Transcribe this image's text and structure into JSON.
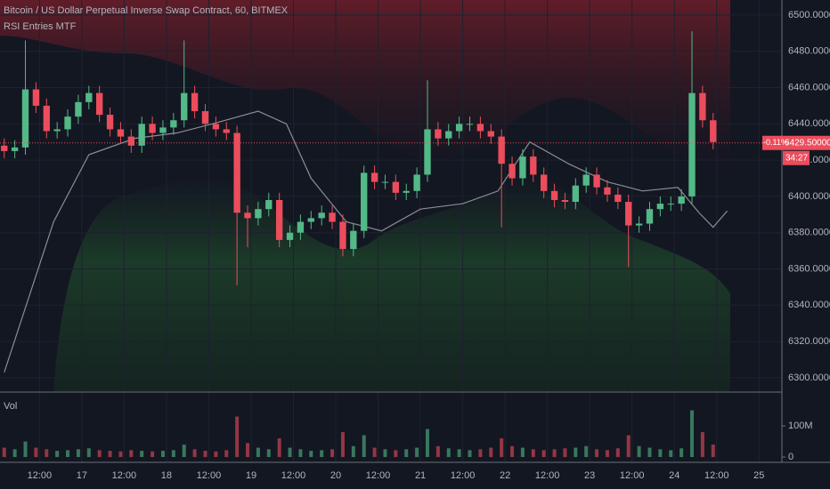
{
  "header": {
    "title": "Bitcoin / US Dollar Perpetual Inverse Swap Contract, 60, BITMEX",
    "indicator": "RSI Entries MTF"
  },
  "chart_data": {
    "type": "candlestick",
    "x": [
      2,
      5,
      8,
      11,
      14,
      17,
      20,
      23,
      26,
      29,
      32,
      35,
      38,
      41,
      44,
      47,
      50,
      53,
      56,
      59,
      62,
      65,
      68,
      71,
      74,
      77,
      80,
      83,
      86,
      89,
      92,
      95,
      98,
      101,
      104,
      107,
      110,
      113,
      116,
      119,
      122,
      125,
      128,
      131,
      134,
      137,
      140,
      143,
      146,
      149,
      152,
      155,
      158,
      161,
      164,
      167,
      170,
      173,
      176,
      179,
      182,
      185,
      188,
      191,
      194,
      197,
      200,
      203
    ],
    "open": [
      6428,
      6425,
      6427,
      6459,
      6450,
      6436,
      6437,
      6444,
      6452,
      6457,
      6445,
      6437,
      6433,
      6428,
      6440,
      6435,
      6438,
      6442,
      6457,
      6447,
      6440,
      6437,
      6435,
      6391,
      6388,
      6393,
      6398,
      6376,
      6380,
      6386,
      6388,
      6391,
      6386,
      6371,
      6381,
      6413,
      6408,
      6408,
      6402,
      6403,
      6412,
      6437,
      6432,
      6436,
      6440,
      6440,
      6436,
      6433,
      6418,
      6410,
      6422,
      6412,
      6403,
      6398,
      6397,
      6406,
      6412,
      6405,
      6401,
      6397,
      6384,
      6385,
      6393,
      6396,
      6396,
      6400,
      6457,
      6442
    ],
    "high": [
      6432,
      6431,
      6486,
      6463,
      6454,
      6441,
      6448,
      6456,
      6461,
      6461,
      6449,
      6441,
      6437,
      6444,
      6444,
      6442,
      6446,
      6486,
      6461,
      6451,
      6444,
      6441,
      6439,
      6395,
      6397,
      6402,
      6402,
      6384,
      6390,
      6392,
      6395,
      6395,
      6390,
      6385,
      6417,
      6417,
      6412,
      6412,
      6407,
      6416,
      6464,
      6441,
      6440,
      6444,
      6444,
      6444,
      6440,
      6437,
      6422,
      6426,
      6426,
      6416,
      6407,
      6402,
      6410,
      6416,
      6416,
      6409,
      6405,
      6401,
      6389,
      6397,
      6400,
      6400,
      6404,
      6491,
      6461,
      6446
    ],
    "low": [
      6421,
      6421,
      6423,
      6446,
      6432,
      6432,
      6433,
      6440,
      6448,
      6441,
      6433,
      6429,
      6424,
      6424,
      6431,
      6431,
      6434,
      6438,
      6443,
      6436,
      6433,
      6431,
      6351,
      6372,
      6384,
      6389,
      6372,
      6372,
      6376,
      6382,
      6384,
      6382,
      6367,
      6367,
      6377,
      6404,
      6404,
      6398,
      6398,
      6399,
      6408,
      6428,
      6428,
      6432,
      6436,
      6432,
      6429,
      6383,
      6406,
      6406,
      6408,
      6399,
      6394,
      6393,
      6393,
      6402,
      6401,
      6397,
      6393,
      6361,
      6380,
      6381,
      6389,
      6392,
      6392,
      6396,
      6438,
      6426
    ],
    "close": [
      6425,
      6427,
      6459,
      6450,
      6436,
      6437,
      6444,
      6452,
      6457,
      6445,
      6437,
      6433,
      6428,
      6440,
      6435,
      6438,
      6442,
      6457,
      6447,
      6440,
      6437,
      6435,
      6391,
      6388,
      6393,
      6398,
      6376,
      6380,
      6386,
      6388,
      6391,
      6386,
      6371,
      6381,
      6413,
      6408,
      6408,
      6402,
      6403,
      6412,
      6437,
      6432,
      6436,
      6440,
      6440,
      6436,
      6433,
      6418,
      6410,
      6422,
      6412,
      6403,
      6398,
      6397,
      6406,
      6412,
      6405,
      6401,
      6397,
      6384,
      6385,
      6393,
      6396,
      6396,
      6400,
      6457,
      6442,
      6430
    ],
    "up_color": "#53b987",
    "down_color": "#eb4d5c",
    "xlim": [
      0.8,
      222.5
    ],
    "xticks": [
      {
        "value": 12,
        "label": "12:00"
      },
      {
        "value": 24,
        "label": "17"
      },
      {
        "value": 36,
        "label": "12:00"
      },
      {
        "value": 48,
        "label": "18"
      },
      {
        "value": 60,
        "label": "12:00"
      },
      {
        "value": 72,
        "label": "19"
      },
      {
        "value": 84,
        "label": "12:00"
      },
      {
        "value": 96,
        "label": "20"
      },
      {
        "value": 108,
        "label": "12:00"
      },
      {
        "value": 120,
        "label": "21"
      },
      {
        "value": 132,
        "label": "12:00"
      },
      {
        "value": 144,
        "label": "22"
      },
      {
        "value": 156,
        "label": "12:00"
      },
      {
        "value": 168,
        "label": "23"
      },
      {
        "value": 180,
        "label": "12:00"
      },
      {
        "value": 192,
        "label": "24"
      },
      {
        "value": 204,
        "label": "12:00"
      },
      {
        "value": 216,
        "label": "25"
      }
    ],
    "ylim": [
      6292.6,
      6508.3
    ],
    "yticks": [
      {
        "value": 6300,
        "label": "6300.00000000"
      },
      {
        "value": 6320,
        "label": "6320.00000000"
      },
      {
        "value": 6340,
        "label": "6340.00000000"
      },
      {
        "value": 6360,
        "label": "6360.00000000"
      },
      {
        "value": 6380,
        "label": "6380.00000000"
      },
      {
        "value": 6400,
        "label": "6400.00000000"
      },
      {
        "value": 6420,
        "label": "6420.00000000"
      },
      {
        "value": 6440,
        "label": "6440.00000000"
      },
      {
        "value": 6460,
        "label": "6460.00000000"
      },
      {
        "value": 6480,
        "label": "6480.00000000"
      },
      {
        "value": 6500,
        "label": "6500.00000000"
      }
    ],
    "line": {
      "color": "#8a8d96",
      "x": [
        2,
        16,
        26,
        39,
        51,
        61,
        74,
        82,
        89,
        99,
        109,
        120,
        132,
        142,
        151,
        162,
        173,
        183,
        193,
        199,
        203,
        207
      ],
      "values": [
        6303,
        6386,
        6423,
        6432,
        6435,
        6440,
        6447,
        6440,
        6410,
        6386,
        6381,
        6393,
        6396,
        6403,
        6430,
        6418,
        6408,
        6403,
        6405,
        6391,
        6383,
        6392
      ]
    },
    "last_price": {
      "value": 6429.5,
      "label": "6429.50000000"
    },
    "change_label": "-0.11%",
    "countdown": "34:27",
    "volume": {
      "title": "Vol",
      "values": [
        30000000,
        25000000,
        50000000,
        30000000,
        25000000,
        20000000,
        22000000,
        25000000,
        28000000,
        22000000,
        20000000,
        18000000,
        22000000,
        20000000,
        18000000,
        20000000,
        22000000,
        40000000,
        25000000,
        20000000,
        18000000,
        22000000,
        130000000,
        45000000,
        30000000,
        25000000,
        60000000,
        30000000,
        25000000,
        20000000,
        22000000,
        25000000,
        80000000,
        35000000,
        70000000,
        30000000,
        25000000,
        22000000,
        25000000,
        30000000,
        90000000,
        35000000,
        28000000,
        25000000,
        22000000,
        25000000,
        30000000,
        60000000,
        35000000,
        30000000,
        25000000,
        22000000,
        25000000,
        28000000,
        30000000,
        35000000,
        25000000,
        22000000,
        28000000,
        70000000,
        35000000,
        30000000,
        25000000,
        22000000,
        28000000,
        150000000,
        80000000,
        40000000
      ],
      "ylim": [
        -17000000,
        205700000
      ],
      "yticks": [
        0,
        {
          "value": 100000000,
          "label": "100M"
        }
      ]
    }
  }
}
